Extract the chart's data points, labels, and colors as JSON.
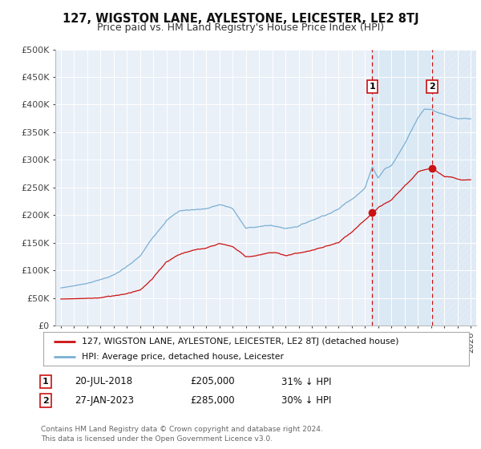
{
  "title": "127, WIGSTON LANE, AYLESTONE, LEICESTER, LE2 8TJ",
  "subtitle": "Price paid vs. HM Land Registry's House Price Index (HPI)",
  "ylim": [
    0,
    500000
  ],
  "yticks": [
    0,
    50000,
    100000,
    150000,
    200000,
    250000,
    300000,
    350000,
    400000,
    450000,
    500000
  ],
  "ytick_labels": [
    "£0",
    "£50K",
    "£100K",
    "£150K",
    "£200K",
    "£250K",
    "£300K",
    "£350K",
    "£400K",
    "£450K",
    "£500K"
  ],
  "xlim_start": 1994.6,
  "xlim_end": 2026.4,
  "hpi_color": "#7ab0d4",
  "price_color": "#cc1111",
  "point1_x": 2018.55,
  "point1_y": 205000,
  "point1_label": "1",
  "point2_x": 2023.07,
  "point2_y": 285000,
  "point2_label": "2",
  "legend_line1": "127, WIGSTON LANE, AYLESTONE, LEICESTER, LE2 8TJ (detached house)",
  "legend_line2": "HPI: Average price, detached house, Leicester",
  "ann1_num": "1",
  "ann1_date": "20-JUL-2018",
  "ann1_price": "£205,000",
  "ann1_hpi": "31% ↓ HPI",
  "ann2_num": "2",
  "ann2_date": "27-JAN-2023",
  "ann2_price": "£285,000",
  "ann2_hpi": "30% ↓ HPI",
  "footer": "Contains HM Land Registry data © Crown copyright and database right 2024.\nThis data is licensed under the Open Government Licence v3.0.",
  "bg_color": "#ffffff",
  "plot_bg_color": "#eaf0f8",
  "grid_color": "#ffffff",
  "future_shade_start": 2023.07,
  "between_shade_start": 2018.55,
  "between_shade_end": 2023.07
}
